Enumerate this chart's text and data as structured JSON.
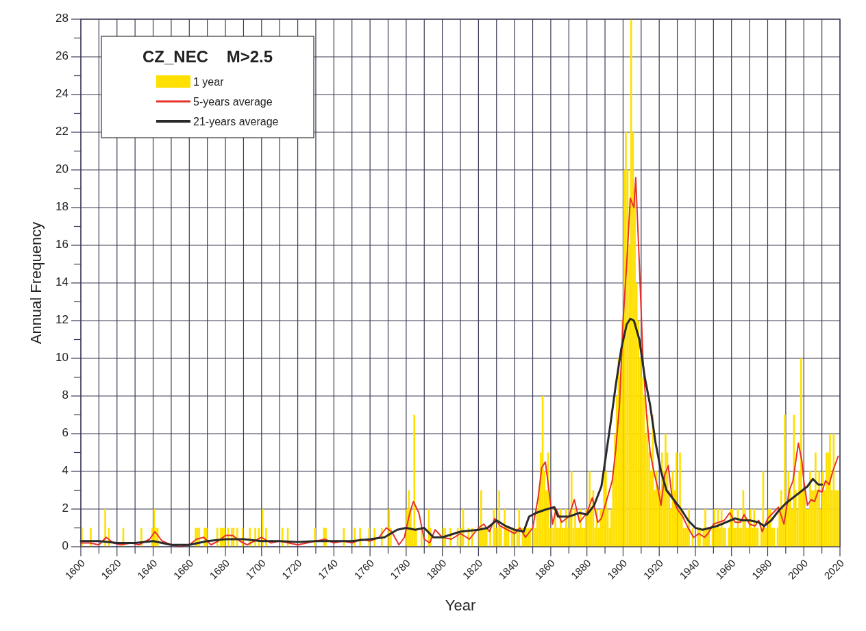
{
  "chart_data": {
    "type": "bar",
    "xlabel": "Year",
    "ylabel": "Annual Frequency",
    "legend_title": "CZ_NEC    M>2.5",
    "legend": "top left",
    "grid": true,
    "xlim": [
      1600,
      2020
    ],
    "xticks": [
      1600,
      {
        "value": 1610,
        "label": null
      },
      1620,
      {
        "value": 1630,
        "label": null
      },
      1640,
      {
        "value": 1650,
        "label": null
      },
      1660,
      {
        "value": 1670,
        "label": null
      },
      1680,
      {
        "value": 1690,
        "label": null
      },
      1700,
      {
        "value": 1710,
        "label": null
      },
      1720,
      {
        "value": 1730,
        "label": null
      },
      1740,
      {
        "value": 1750,
        "label": null
      },
      1760,
      {
        "value": 1770,
        "label": null
      },
      1780,
      {
        "value": 1790,
        "label": null
      },
      1800,
      {
        "value": 1810,
        "label": null
      },
      1820,
      {
        "value": 1830,
        "label": null
      },
      1840,
      {
        "value": 1850,
        "label": null
      },
      1860,
      {
        "value": 1870,
        "label": null
      },
      1880,
      {
        "value": 1890,
        "label": null
      },
      1900,
      {
        "value": 1910,
        "label": null
      },
      1920,
      {
        "value": 1930,
        "label": null
      },
      1940,
      {
        "value": 1950,
        "label": null
      },
      1960,
      {
        "value": 1970,
        "label": null
      },
      1980,
      {
        "value": 1990,
        "label": null
      },
      2000,
      {
        "value": 2010,
        "label": null
      },
      2020
    ],
    "ylim": [
      0,
      28
    ],
    "yticks": [
      0,
      {
        "value": 1,
        "label": null
      },
      2,
      {
        "value": 3,
        "label": null
      },
      4,
      {
        "value": 5,
        "label": null
      },
      6,
      {
        "value": 7,
        "label": null
      },
      8,
      {
        "value": 9,
        "label": null
      },
      10,
      {
        "value": 11,
        "label": null
      },
      12,
      {
        "value": 13,
        "label": null
      },
      14,
      {
        "value": 15,
        "label": null
      },
      16,
      {
        "value": 17,
        "label": null
      },
      18,
      {
        "value": 19,
        "label": null
      },
      20,
      {
        "value": 21,
        "label": null
      },
      22,
      {
        "value": 23,
        "label": null
      },
      24,
      {
        "value": 25,
        "label": null
      },
      26,
      {
        "value": 27,
        "label": null
      },
      28
    ],
    "series": [
      {
        "name": "1 year",
        "color": "#ffe000",
        "x": [
          1600,
          1601,
          1602,
          1603,
          1604,
          1605,
          1606,
          1607,
          1608,
          1609,
          1610,
          1611,
          1612,
          1613,
          1614,
          1615,
          1616,
          1617,
          1618,
          1619,
          1620,
          1621,
          1622,
          1623,
          1624,
          1625,
          1626,
          1627,
          1628,
          1629,
          1630,
          1631,
          1632,
          1633,
          1634,
          1635,
          1636,
          1637,
          1638,
          1639,
          1640,
          1641,
          1642,
          1643,
          1644,
          1645,
          1646,
          1647,
          1648,
          1649,
          1650,
          1651,
          1652,
          1653,
          1654,
          1655,
          1656,
          1657,
          1658,
          1659,
          1660,
          1661,
          1662,
          1663,
          1664,
          1665,
          1666,
          1667,
          1668,
          1669,
          1670,
          1671,
          1672,
          1673,
          1674,
          1675,
          1676,
          1677,
          1678,
          1679,
          1680,
          1681,
          1682,
          1683,
          1684,
          1685,
          1686,
          1687,
          1688,
          1689,
          1690,
          1691,
          1692,
          1693,
          1694,
          1695,
          1696,
          1697,
          1698,
          1699,
          1700,
          1701,
          1702,
          1703,
          1704,
          1705,
          1706,
          1707,
          1708,
          1709,
          1710,
          1711,
          1712,
          1713,
          1714,
          1715,
          1716,
          1717,
          1718,
          1719,
          1720,
          1721,
          1722,
          1723,
          1724,
          1725,
          1726,
          1727,
          1728,
          1729,
          1730,
          1731,
          1732,
          1733,
          1734,
          1735,
          1736,
          1737,
          1738,
          1739,
          1740,
          1741,
          1742,
          1743,
          1744,
          1745,
          1746,
          1747,
          1748,
          1749,
          1750,
          1751,
          1752,
          1753,
          1754,
          1755,
          1756,
          1757,
          1758,
          1759,
          1760,
          1761,
          1762,
          1763,
          1764,
          1765,
          1766,
          1767,
          1768,
          1769,
          1770,
          1771,
          1772,
          1773,
          1774,
          1775,
          1776,
          1777,
          1778,
          1779,
          1780,
          1781,
          1782,
          1783,
          1784,
          1785,
          1786,
          1787,
          1788,
          1789,
          1790,
          1791,
          1792,
          1793,
          1794,
          1795,
          1796,
          1797,
          1798,
          1799,
          1800,
          1801,
          1802,
          1803,
          1804,
          1805,
          1806,
          1807,
          1808,
          1809,
          1810,
          1811,
          1812,
          1813,
          1814,
          1815,
          1816,
          1817,
          1818,
          1819,
          1820,
          1821,
          1822,
          1823,
          1824,
          1825,
          1826,
          1827,
          1828,
          1829,
          1830,
          1831,
          1832,
          1833,
          1834,
          1835,
          1836,
          1837,
          1838,
          1839,
          1840,
          1841,
          1842,
          1843,
          1844,
          1845,
          1846,
          1847,
          1848,
          1849,
          1850,
          1851,
          1852,
          1853,
          1854,
          1855,
          1856,
          1857,
          1858,
          1859,
          1860,
          1861,
          1862,
          1863,
          1864,
          1865,
          1866,
          1867,
          1868,
          1869,
          1870,
          1871,
          1872,
          1873,
          1874,
          1875,
          1876,
          1877,
          1878,
          1879,
          1880,
          1881,
          1882,
          1883,
          1884,
          1885,
          1886,
          1887,
          1888,
          1889,
          1890,
          1891,
          1892,
          1893,
          1894,
          1895,
          1896,
          1897,
          1898,
          1899,
          1900,
          1901,
          1902,
          1903,
          1904,
          1905,
          1906,
          1907,
          1908,
          1909,
          1910,
          1911,
          1912,
          1913,
          1914,
          1915,
          1916,
          1917,
          1918,
          1919,
          1920,
          1921,
          1922,
          1923,
          1924,
          1925,
          1926,
          1927,
          1928,
          1929,
          1930,
          1931,
          1932,
          1933,
          1934,
          1935,
          1936,
          1937,
          1938,
          1939,
          1940,
          1941,
          1942,
          1943,
          1944,
          1945,
          1946,
          1947,
          1948,
          1949,
          1950,
          1951,
          1952,
          1953,
          1954,
          1955,
          1956,
          1957,
          1958,
          1959,
          1960,
          1961,
          1962,
          1963,
          1964,
          1965,
          1966,
          1967,
          1968,
          1969,
          1970,
          1971,
          1972,
          1973,
          1974,
          1975,
          1976,
          1977,
          1978,
          1979,
          1980,
          1981,
          1982,
          1983,
          1984,
          1985,
          1986,
          1987,
          1988,
          1989,
          1990,
          1991,
          1992,
          1993,
          1994,
          1995,
          1996,
          1997,
          1998,
          1999,
          2000,
          2001,
          2002,
          2003,
          2004,
          2005,
          2006,
          2007,
          2008,
          2009,
          2010,
          2011,
          2012,
          2013,
          2014,
          2015,
          2016,
          2017,
          2018,
          2019
        ],
        "values": [
          1,
          0,
          0,
          0,
          0,
          1,
          0,
          0,
          0,
          0,
          0,
          0,
          0,
          2,
          0,
          1,
          0,
          0,
          0,
          0,
          0,
          0,
          0,
          1,
          0,
          0,
          0,
          0,
          0,
          0,
          0,
          0,
          0,
          1,
          0,
          0,
          0,
          0,
          0,
          1,
          2,
          1,
          1,
          0,
          0,
          0,
          0,
          0,
          0,
          0,
          0,
          0,
          0,
          0,
          0,
          0,
          0,
          0,
          0,
          0,
          0,
          0,
          0,
          1,
          1,
          1,
          0,
          0,
          1,
          1,
          0,
          0,
          0,
          0,
          0,
          1,
          0,
          1,
          1,
          1,
          0,
          1,
          0,
          1,
          1,
          0,
          1,
          0,
          0,
          1,
          0,
          0,
          0,
          1,
          0,
          0,
          1,
          0,
          1,
          0,
          2,
          0,
          1,
          0,
          0,
          0,
          0,
          0,
          0,
          0,
          0,
          1,
          0,
          0,
          1,
          0,
          0,
          0,
          0,
          0,
          0,
          0,
          0,
          0,
          0,
          0,
          0,
          0,
          0,
          1,
          0,
          0,
          0,
          0,
          1,
          1,
          0,
          0,
          0,
          0,
          0,
          0,
          0,
          0,
          0,
          1,
          0,
          0,
          0,
          0,
          0,
          1,
          0,
          0,
          1,
          0,
          0,
          0,
          0,
          1,
          0,
          0,
          1,
          0,
          0,
          0,
          1,
          0,
          0,
          0,
          2,
          1,
          0,
          0,
          0,
          0,
          0,
          0,
          0,
          0,
          2,
          3,
          2,
          1,
          7,
          1,
          0,
          0,
          1,
          0,
          0,
          0,
          2,
          1,
          0,
          0,
          0,
          0,
          0,
          0,
          1,
          1,
          0,
          0,
          1,
          0,
          0,
          0,
          1,
          0,
          1,
          2,
          0,
          0,
          1,
          0,
          1,
          0,
          0,
          0,
          1,
          3,
          1,
          1,
          1,
          0,
          1,
          0,
          2,
          1,
          1,
          3,
          1,
          0,
          2,
          1,
          1,
          0,
          1,
          1,
          0,
          1,
          2,
          0,
          1,
          1,
          1,
          1,
          1,
          0,
          1,
          1,
          2,
          3,
          5,
          8,
          4,
          3,
          5,
          1,
          1,
          1,
          2,
          1,
          1,
          2,
          1,
          1,
          2,
          1,
          2,
          4,
          1,
          2,
          1,
          1,
          2,
          1,
          1,
          2,
          2,
          4,
          2,
          3,
          1,
          2,
          1,
          2,
          2,
          4,
          4,
          2,
          1,
          2,
          4,
          6,
          8,
          10,
          9,
          12,
          20,
          22,
          20,
          16,
          28,
          22,
          19,
          14,
          12,
          10,
          9,
          8,
          6,
          7,
          5,
          4,
          7,
          3,
          4,
          3,
          3,
          5,
          4,
          6,
          5,
          3,
          2,
          4,
          3,
          5,
          2,
          5,
          2,
          1,
          1,
          1,
          2,
          0,
          1,
          0,
          0,
          1,
          1,
          0,
          1,
          2,
          1,
          1,
          0,
          1,
          2,
          1,
          2,
          1,
          2,
          1,
          1,
          0,
          1,
          2,
          2,
          1,
          1,
          2,
          1,
          1,
          3,
          2,
          1,
          1,
          2,
          1,
          2,
          1,
          1,
          0,
          1,
          4,
          1,
          1,
          2,
          2,
          1,
          1,
          0,
          1,
          2,
          3,
          2,
          7,
          2,
          4,
          3,
          2,
          7,
          3,
          2,
          4,
          10,
          3,
          3,
          2,
          2,
          4,
          3,
          3,
          5,
          3,
          4,
          2,
          4,
          3,
          5,
          5,
          6,
          3,
          6,
          3,
          3,
          3
        ]
      },
      {
        "name": "5-years average",
        "type": "line",
        "color": "#e8302a",
        "x": [
          1600,
          1605,
          1610,
          1614,
          1618,
          1622,
          1628,
          1632,
          1638,
          1641,
          1645,
          1650,
          1655,
          1660,
          1664,
          1668,
          1672,
          1676,
          1680,
          1684,
          1688,
          1692,
          1696,
          1700,
          1705,
          1710,
          1715,
          1720,
          1725,
          1730,
          1735,
          1740,
          1745,
          1750,
          1755,
          1760,
          1765,
          1769,
          1772,
          1776,
          1779,
          1782,
          1784,
          1787,
          1790,
          1793,
          1796,
          1800,
          1805,
          1810,
          1815,
          1820,
          1823,
          1826,
          1829,
          1832,
          1836,
          1840,
          1843,
          1846,
          1850,
          1853,
          1855,
          1857,
          1859,
          1861,
          1863,
          1866,
          1870,
          1873,
          1876,
          1880,
          1883,
          1886,
          1888,
          1891,
          1894,
          1896,
          1898,
          1900,
          1902,
          1904,
          1906,
          1907,
          1909,
          1911,
          1913,
          1915,
          1917,
          1919,
          1921,
          1923,
          1925,
          1927,
          1930,
          1933,
          1936,
          1939,
          1942,
          1945,
          1947,
          1950,
          1953,
          1956,
          1959,
          1962,
          1965,
          1967,
          1970,
          1973,
          1975,
          1977,
          1980,
          1983,
          1986,
          1989,
          1992,
          1994,
          1997,
          1999,
          2000,
          2002,
          2004,
          2006,
          2008,
          2010,
          2012,
          2014,
          2016,
          2019
        ],
        "values": [
          0.2,
          0.2,
          0.1,
          0.5,
          0.2,
          0.1,
          0.2,
          0.1,
          0.4,
          0.8,
          0.3,
          0.1,
          0,
          0.1,
          0.4,
          0.5,
          0.1,
          0.3,
          0.6,
          0.6,
          0.3,
          0.1,
          0.3,
          0.5,
          0.2,
          0.3,
          0.2,
          0.1,
          0.2,
          0.3,
          0.4,
          0.2,
          0.3,
          0.2,
          0.4,
          0.3,
          0.5,
          1.0,
          0.8,
          0.1,
          0.5,
          1.8,
          2.4,
          1.8,
          0.4,
          0.2,
          0.9,
          0.5,
          0.4,
          0.7,
          0.4,
          1.0,
          1.2,
          0.8,
          1.5,
          1.1,
          0.9,
          0.7,
          1.0,
          0.5,
          1.0,
          2.6,
          4.2,
          4.5,
          3.0,
          1.2,
          2.0,
          1.3,
          1.6,
          2.5,
          1.3,
          1.8,
          2.6,
          1.3,
          1.5,
          2.5,
          3.5,
          5.2,
          7.5,
          12,
          15,
          18.5,
          18,
          19.6,
          15,
          10,
          7,
          5,
          4,
          3.2,
          2.2,
          3.8,
          4.3,
          2.7,
          2.0,
          1.6,
          1.0,
          0.5,
          0.7,
          0.5,
          0.7,
          1.2,
          1.3,
          1.4,
          1.8,
          1.3,
          1.3,
          1.7,
          1.2,
          1.1,
          1.4,
          0.8,
          1.5,
          1.8,
          2.1,
          1.2,
          3.0,
          3.5,
          5.5,
          4.5,
          3.5,
          2.2,
          2.5,
          2.4,
          3.0,
          2.9,
          3.5,
          3.3,
          4.0,
          4.8
        ]
      },
      {
        "name": "21-years average",
        "type": "line",
        "color": "#2a2a2a",
        "x": [
          1600,
          1610,
          1620,
          1630,
          1640,
          1650,
          1660,
          1670,
          1680,
          1690,
          1700,
          1710,
          1720,
          1730,
          1740,
          1750,
          1760,
          1768,
          1775,
          1780,
          1785,
          1790,
          1795,
          1800,
          1810,
          1820,
          1825,
          1830,
          1835,
          1840,
          1845,
          1848,
          1852,
          1858,
          1862,
          1864,
          1870,
          1876,
          1880,
          1884,
          1888,
          1890,
          1893,
          1896,
          1899,
          1902,
          1904,
          1906,
          1909,
          1912,
          1915,
          1918,
          1921,
          1924,
          1928,
          1932,
          1936,
          1940,
          1944,
          1948,
          1952,
          1957,
          1962,
          1966,
          1970,
          1975,
          1978,
          1982,
          1986,
          1990,
          1994,
          1998,
          2002,
          2005,
          2008,
          2010
        ],
        "values": [
          0.3,
          0.3,
          0.2,
          0.2,
          0.3,
          0.1,
          0.1,
          0.3,
          0.4,
          0.4,
          0.3,
          0.3,
          0.25,
          0.3,
          0.3,
          0.3,
          0.4,
          0.5,
          0.9,
          1.0,
          0.9,
          1.0,
          0.5,
          0.5,
          0.8,
          0.9,
          1.0,
          1.4,
          1.1,
          0.9,
          0.8,
          1.6,
          1.8,
          2.0,
          2.1,
          1.6,
          1.6,
          1.8,
          1.7,
          2.2,
          3.2,
          4.5,
          6.5,
          8.6,
          10.5,
          11.8,
          12.1,
          12.0,
          11.0,
          9.0,
          7.5,
          5.5,
          4.0,
          3.0,
          2.5,
          2.0,
          1.4,
          1.0,
          0.9,
          1.0,
          1.1,
          1.3,
          1.5,
          1.4,
          1.4,
          1.3,
          1.1,
          1.4,
          1.9,
          2.3,
          2.6,
          2.9,
          3.2,
          3.6,
          3.3,
          3.3
        ]
      }
    ]
  }
}
